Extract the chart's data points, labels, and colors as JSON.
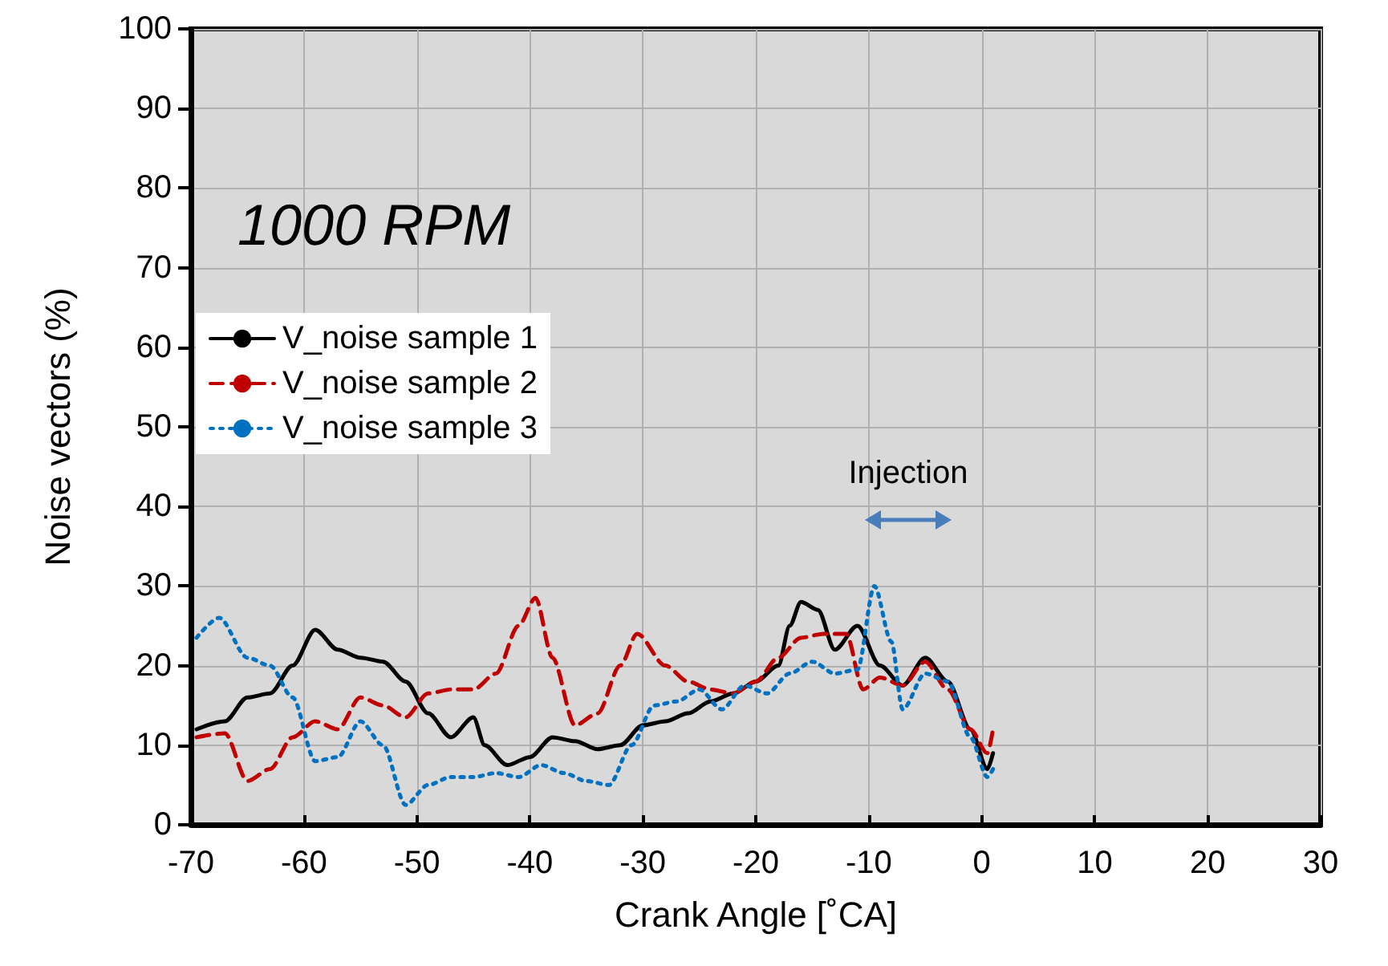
{
  "chart_data": {
    "type": "line",
    "xlabel": "Crank Angle [˚CA]",
    "ylabel": "Noise vectors (%)",
    "annotations": [
      "1000 RPM",
      "Injection"
    ],
    "xlim": [
      -70,
      30
    ],
    "xticks": [
      -70,
      -60,
      -50,
      -40,
      -30,
      -20,
      -10,
      0,
      10,
      20,
      30
    ],
    "ylim": [
      0,
      100
    ],
    "yticks": [
      0,
      10,
      20,
      30,
      40,
      50,
      60,
      70,
      80,
      90,
      100
    ],
    "grid": true,
    "legend": "left",
    "marker": "none",
    "series": [
      {
        "name": "V_noise sample 1",
        "color": "#000000",
        "line_style": "solid",
        "x": [
          -69.5,
          -67,
          -65,
          -63,
          -61,
          -59,
          -57,
          -55,
          -53,
          -51,
          -49,
          -47,
          -45,
          -44,
          -42,
          -40,
          -38,
          -36,
          -34,
          -32,
          -30,
          -28,
          -26,
          -24,
          -22,
          -20,
          -18,
          -17,
          -16,
          -14.5,
          -13,
          -11,
          -9,
          -7,
          -5,
          -3,
          -1,
          0.5,
          1
        ],
        "values": [
          12,
          13,
          16,
          16.5,
          20,
          24.5,
          22,
          21,
          20.5,
          18,
          14,
          11,
          13.5,
          10,
          7.5,
          8.5,
          11,
          10.5,
          9.5,
          10,
          12.5,
          13,
          14,
          15.5,
          16.5,
          18,
          20,
          25,
          28,
          27,
          22,
          25,
          20,
          17.5,
          21,
          18,
          12,
          7,
          9
        ]
      },
      {
        "name": "V_noise sample 2",
        "color": "#c00000",
        "line_style": "dashed",
        "x": [
          -69.5,
          -67,
          -65,
          -63,
          -61,
          -59,
          -57,
          -55,
          -53,
          -51,
          -49,
          -47,
          -45,
          -43,
          -41,
          -39.5,
          -38,
          -36,
          -34,
          -32,
          -30.5,
          -28,
          -26,
          -24,
          -22,
          -20,
          -18,
          -16,
          -14,
          -12,
          -10.5,
          -9,
          -7,
          -5,
          -3,
          -1,
          0.5,
          1
        ],
        "values": [
          11,
          11.5,
          5.5,
          7,
          11,
          13,
          12,
          16,
          15,
          13.5,
          16.5,
          17,
          17,
          19,
          25,
          28.5,
          21,
          12.5,
          14,
          20,
          24,
          20,
          18,
          17,
          16.5,
          18,
          21,
          23.5,
          24,
          24,
          17,
          18.5,
          17.5,
          20.5,
          17,
          12,
          9,
          12
        ]
      },
      {
        "name": "V_noise sample 3",
        "color": "#0070c0",
        "line_style": "dotted",
        "x": [
          -69.5,
          -67.5,
          -65,
          -63,
          -61,
          -59,
          -57,
          -55,
          -53,
          -51,
          -49,
          -47,
          -45,
          -43,
          -41,
          -39,
          -37,
          -35,
          -33,
          -31,
          -29,
          -27,
          -25,
          -23,
          -21,
          -19,
          -17,
          -15,
          -13,
          -11,
          -9.5,
          -8,
          -7,
          -5,
          -3,
          -1,
          0.5,
          1
        ],
        "values": [
          23.5,
          26,
          21,
          20,
          16,
          8,
          8.5,
          13,
          10,
          2.5,
          5,
          6,
          6,
          6.5,
          6,
          7.5,
          6.5,
          5.5,
          5,
          10,
          15,
          15.5,
          17,
          14.5,
          17.5,
          16.5,
          19,
          20.5,
          19,
          19.5,
          30,
          23,
          14.5,
          19,
          18,
          11,
          6,
          7
        ]
      }
    ]
  }
}
